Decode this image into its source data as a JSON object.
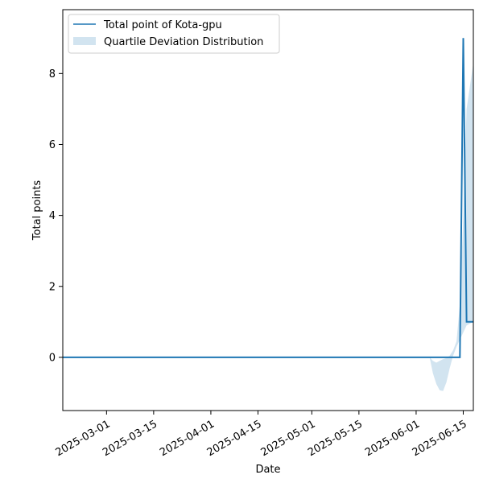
{
  "chart_data": {
    "type": "line",
    "title": "",
    "xlabel": "Date",
    "ylabel": "Total points",
    "xlim": [
      "2025-02-16",
      "2025-06-18"
    ],
    "ylim": [
      -1.5,
      9.8
    ],
    "x_ticks": [
      "2025-03-01",
      "2025-03-15",
      "2025-04-01",
      "2025-04-15",
      "2025-05-01",
      "2025-05-15",
      "2025-06-01",
      "2025-06-15"
    ],
    "y_ticks": [
      0,
      2,
      4,
      6,
      8
    ],
    "grid": false,
    "legend_position": "top-left",
    "series": [
      {
        "name": "Total point of Kota-gpu",
        "color": "#1f77b4",
        "x": [
          "2025-02-16",
          "2025-06-14",
          "2025-06-15",
          "2025-06-16",
          "2025-06-18"
        ],
        "y": [
          0,
          0,
          9,
          1,
          1
        ]
      }
    ],
    "band": {
      "name": "Quartile Deviation Distribution",
      "color": "#1f77b4",
      "opacity": 0.2,
      "x": [
        "2025-06-05",
        "2025-06-06",
        "2025-06-07",
        "2025-06-08",
        "2025-06-09",
        "2025-06-10",
        "2025-06-11",
        "2025-06-12",
        "2025-06-13",
        "2025-06-14",
        "2025-06-15",
        "2025-06-16",
        "2025-06-18"
      ],
      "lower": [
        0,
        -0.45,
        -0.75,
        -0.93,
        -0.95,
        -0.7,
        -0.3,
        0.05,
        0.3,
        0.5,
        0.7,
        0.9,
        1.0
      ],
      "upper": [
        0,
        -0.1,
        -0.15,
        -0.1,
        -0.05,
        -0.02,
        0.05,
        0.2,
        0.45,
        1.5,
        4.0,
        7.0,
        8.3
      ]
    }
  }
}
